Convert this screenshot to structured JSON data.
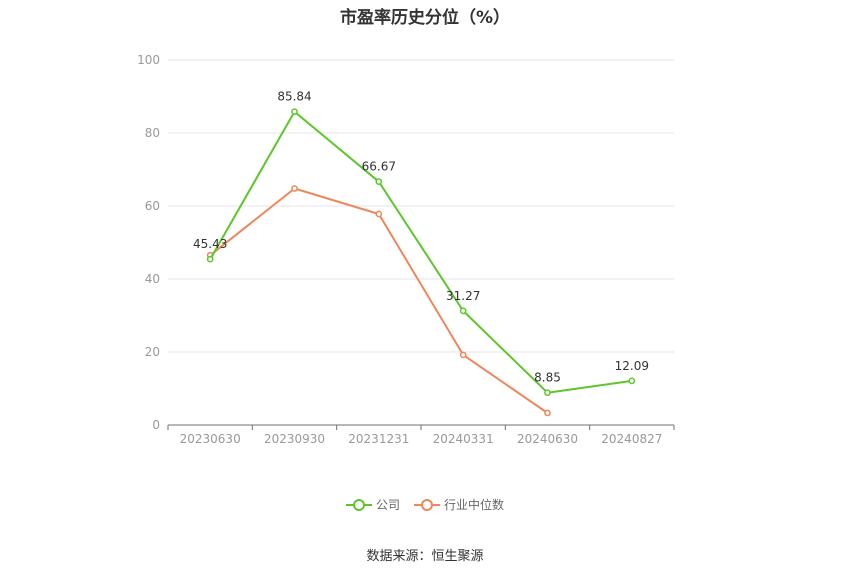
{
  "chart_data": {
    "type": "line",
    "title": "市盈率历史分位（%）",
    "xlabel": "",
    "ylabel": "",
    "categories": [
      "20230630",
      "20230930",
      "20231231",
      "20240331",
      "20240630",
      "20240827"
    ],
    "ylim": [
      0,
      100
    ],
    "yticks": [
      0,
      20,
      40,
      60,
      80,
      100
    ],
    "grid": true,
    "legend_position": "bottom",
    "series": [
      {
        "name": "公司",
        "color": "#5cc72a",
        "values": [
          45.43,
          85.84,
          66.67,
          31.27,
          8.85,
          12.09
        ],
        "show_labels": true
      },
      {
        "name": "行业中位数",
        "color": "#f0875a",
        "values": [
          46.5,
          64.8,
          57.8,
          19.2,
          3.3,
          null
        ],
        "show_labels": false
      }
    ]
  },
  "source_text": "数据来源：恒生聚源"
}
